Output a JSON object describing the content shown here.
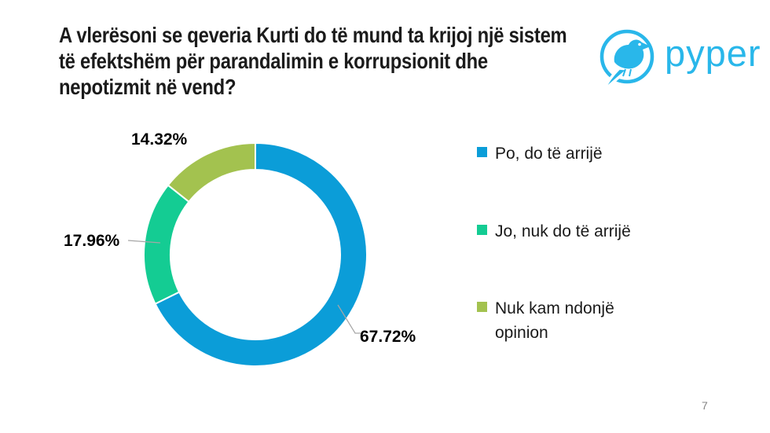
{
  "slide": {
    "page_number": "7",
    "background_color": "#FFFFFF"
  },
  "title": {
    "text": "A vlerësoni se qeveria Kurti do të mund ta krijoj një sistem\ntë efektshëm për parandalimin e korrupsionit dhe\nnepotizmit në vend?"
  },
  "logo": {
    "brand": "pyper",
    "color": "#29B7EA",
    "icon": "bird-in-circle-icon"
  },
  "chart_data": {
    "type": "pie",
    "subtype": "donut",
    "title": "A vlerësoni se qeveria Kurti do të mund ta krijoj një sistem të efektshëm për parandalimin e korrupsionit dhe nepotizmit në vend?",
    "hole_ratio": 0.76,
    "start_angle_deg": 0,
    "direction": "clockwise",
    "legend_position": "right",
    "data_labels": "outside",
    "leader_line_color": "#A6A6A6",
    "slices": [
      {
        "label": "Po, do të arrijë",
        "value": 67.72,
        "display": "67.72%",
        "color": "#0B9DD8"
      },
      {
        "label": "Jo, nuk do të arrijë",
        "value": 17.96,
        "display": "17.96%",
        "color": "#14CC93"
      },
      {
        "label": "Nuk kam ndonjë opinion",
        "value": 14.32,
        "display": "14.32%",
        "color": "#A3C24F"
      }
    ]
  }
}
